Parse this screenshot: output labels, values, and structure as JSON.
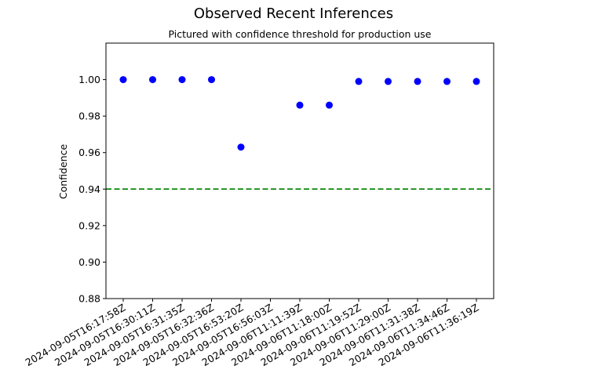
{
  "chart_data": {
    "type": "scatter",
    "title": "Observed Recent Inferences",
    "subtitle": "Pictured with confidence threshold for production use",
    "xlabel": "",
    "ylabel": "Confidence",
    "ylim": [
      0.88,
      1.02
    ],
    "yticks": [
      0.88,
      0.9,
      0.92,
      0.94,
      0.96,
      0.98,
      1.0
    ],
    "ytick_labels": [
      "0.88",
      "0.90",
      "0.92",
      "0.94",
      "0.96",
      "0.98",
      "1.00"
    ],
    "x": [
      "2024-09-05T16:17:58Z",
      "2024-09-05T16:30:11Z",
      "2024-09-05T16:31:35Z",
      "2024-09-05T16:32:36Z",
      "2024-09-05T16:53:20Z",
      "2024-09-05T16:56:03Z",
      "2024-09-06T11:11:39Z",
      "2024-09-06T11:18:00Z",
      "2024-09-06T11:19:52Z",
      "2024-09-06T11:29:00Z",
      "2024-09-06T11:31:38Z",
      "2024-09-06T11:34:46Z",
      "2024-09-06T11:36:19Z"
    ],
    "y": [
      1.0,
      1.0,
      1.0,
      1.0,
      0.963,
      null,
      0.986,
      0.986,
      0.999,
      0.999,
      0.999,
      0.999,
      0.999
    ],
    "threshold": 0.94,
    "grid": false,
    "colors": {
      "points": "#0000ff",
      "threshold": "#008000",
      "axes": "#000000"
    }
  }
}
